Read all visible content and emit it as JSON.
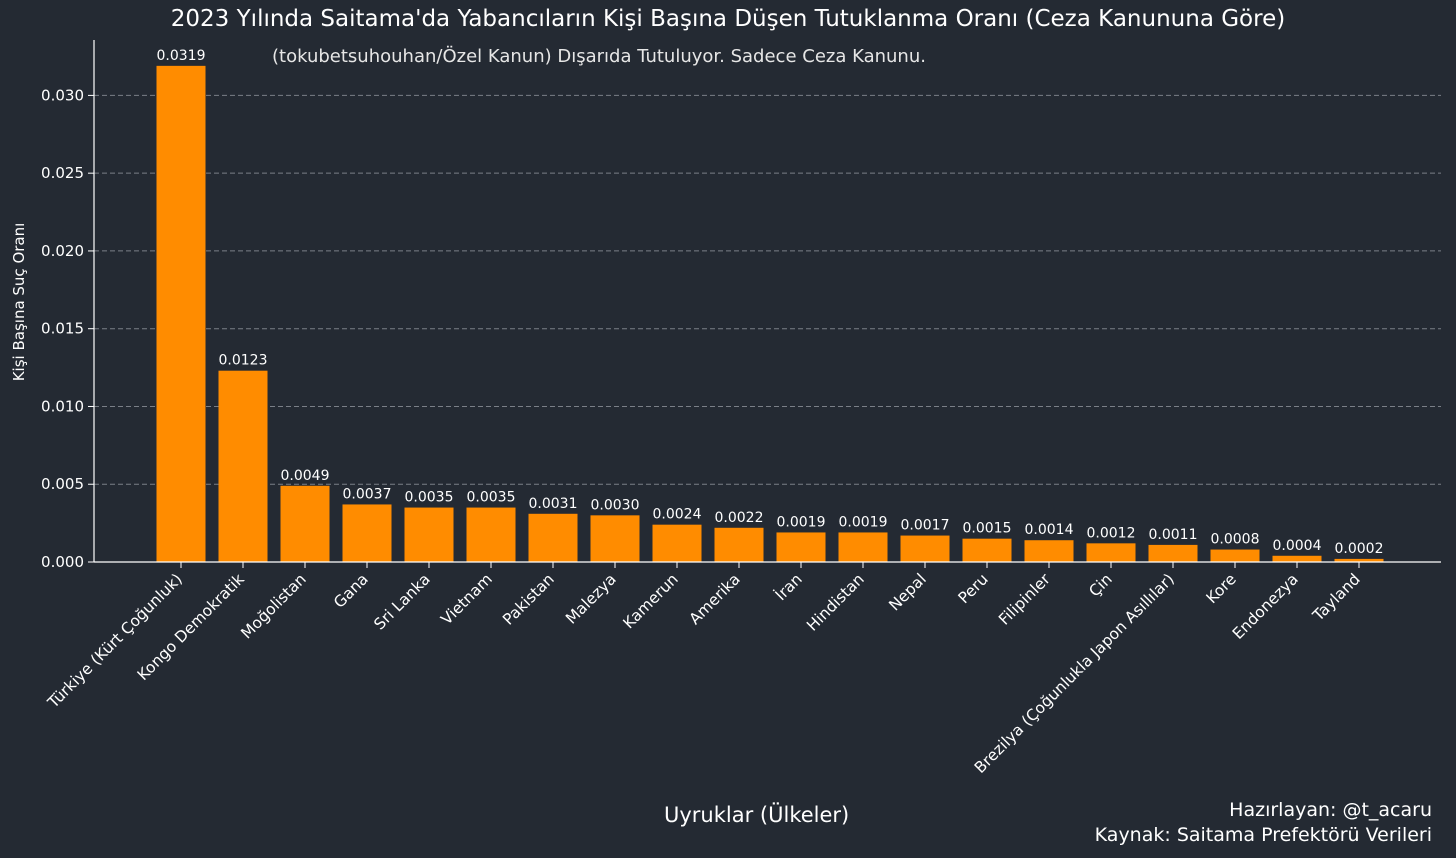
{
  "chart_data": {
    "type": "bar",
    "title": "2023 Yılında Saitama'da Yabancıların Kişi Başına Düşen Tutuklanma Oranı (Ceza Kanununa Göre)",
    "subtitle": "(tokubetsuhouhan/Özel Kanun) Dışarıda Tutuluyor. Sadece Ceza Kanunu.",
    "xlabel": "Uyruklar (Ülkeler)",
    "ylabel": "Kişi Başına Suç Oranı",
    "categories": [
      "Türkiye (Kürt Çoğunluk)",
      "Kongo Demokratik",
      "Moğolistan",
      "Gana",
      "Sri Lanka",
      "Vietnam",
      "Pakistan",
      "Malezya",
      "Kamerun",
      "Amerika",
      "İran",
      "Hindistan",
      "Nepal",
      "Peru",
      "Filipinler",
      "Çin",
      "Brezilya (Çoğunlukla Japon Asıllılar)",
      "Kore",
      "Endonezya",
      "Tayland"
    ],
    "values": [
      0.0319,
      0.0123,
      0.0049,
      0.0037,
      0.0035,
      0.0035,
      0.0031,
      0.003,
      0.0024,
      0.0022,
      0.0019,
      0.0019,
      0.0017,
      0.0015,
      0.0014,
      0.0012,
      0.0011,
      0.0008,
      0.0004,
      0.0002
    ],
    "data_labels": [
      "0.0319",
      "0.0123",
      "0.0049",
      "0.0037",
      "0.0035",
      "0.0035",
      "0.0031",
      "0.0030",
      "0.0024",
      "0.0022",
      "0.0019",
      "0.0019",
      "0.0017",
      "0.0015",
      "0.0014",
      "0.0012",
      "0.0011",
      "0.0008",
      "0.0004",
      "0.0002"
    ],
    "yticks": [
      "0.000",
      "0.005",
      "0.010",
      "0.015",
      "0.020",
      "0.025",
      "0.030"
    ],
    "ytick_values": [
      0,
      0.005,
      0.01,
      0.015,
      0.02,
      0.025,
      0.03
    ],
    "ylim": [
      0,
      0.0335
    ],
    "grid": "horizontal dashed",
    "bar_color": "#ff8c00",
    "background_color": "#242a33",
    "grid_color": "#7a7f87"
  },
  "credits": {
    "line1": "Hazırlayan: @t_acaru",
    "line2": "Kaynak: Saitama Prefektörü Verileri"
  }
}
